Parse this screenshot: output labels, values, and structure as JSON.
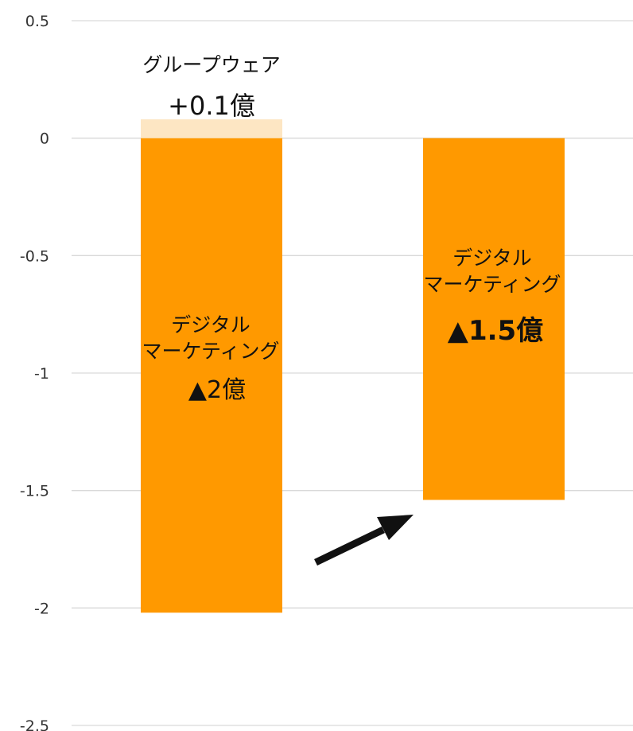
{
  "chart_data": {
    "type": "bar",
    "ylim": [
      -2.5,
      0.5
    ],
    "yticks": [
      {
        "value": 0.5,
        "label": "0.5"
      },
      {
        "value": 0,
        "label": "0"
      },
      {
        "value": -0.5,
        "label": "-0.5"
      },
      {
        "value": -1,
        "label": "-1"
      },
      {
        "value": -1.5,
        "label": "-1.5"
      },
      {
        "value": -2,
        "label": "-2"
      },
      {
        "value": -2.5,
        "label": "-2.5"
      }
    ],
    "grid": true,
    "legend": "none",
    "categories": [
      "",
      ""
    ],
    "bars": [
      {
        "value": -2.02,
        "color": "#FF9900",
        "label_lines": [
          "デジタル",
          "マーケティング"
        ],
        "value_label": "▲2億",
        "stack": {
          "value": 0.08,
          "color": "#FDE6C3",
          "label": "グループウェア",
          "value_label": "+0.1億"
        }
      },
      {
        "value": -1.54,
        "color": "#FF9900",
        "label_lines": [
          "デジタル",
          "マーケティング"
        ],
        "value_label": "▲1.5億"
      }
    ],
    "annotation": "arrow-up-right",
    "colors": {
      "grid": "#D9D9D9",
      "bar": "#FF9900",
      "bar_light": "#FDE6C3",
      "arrow": "#111111"
    }
  }
}
